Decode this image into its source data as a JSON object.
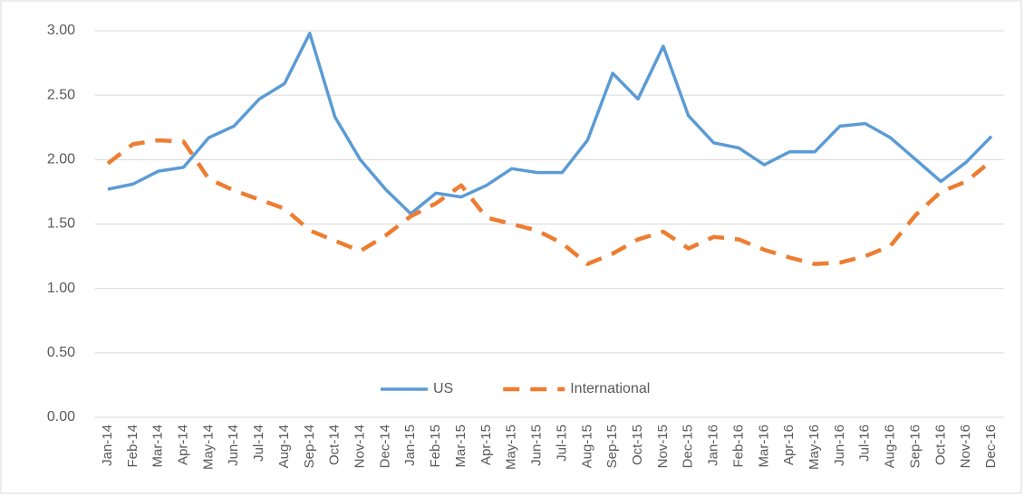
{
  "chart_data": {
    "type": "line",
    "categories": [
      "Jan-14",
      "Feb-14",
      "Mar-14",
      "Apr-14",
      "May-14",
      "Jun-14",
      "Jul-14",
      "Aug-14",
      "Sep-14",
      "Oct-14",
      "Nov-14",
      "Dec-14",
      "Jan-15",
      "Feb-15",
      "Mar-15",
      "Apr-15",
      "May-15",
      "Jun-15",
      "Jul-15",
      "Aug-15",
      "Sep-15",
      "Oct-15",
      "Nov-15",
      "Dec-15",
      "Jan-16",
      "Feb-16",
      "Mar-16",
      "Apr-16",
      "May-16",
      "Jun-16",
      "Jul-16",
      "Aug-16",
      "Sep-16",
      "Oct-16",
      "Nov-16",
      "Dec-16"
    ],
    "series": [
      {
        "name": "US",
        "color": "#5b9bd5",
        "dash": false,
        "values": [
          1.77,
          1.81,
          1.91,
          1.94,
          2.17,
          2.26,
          2.47,
          2.59,
          2.98,
          2.33,
          2.0,
          1.77,
          1.58,
          1.74,
          1.71,
          1.8,
          1.93,
          1.9,
          1.9,
          2.15,
          2.67,
          2.47,
          2.88,
          2.34,
          2.13,
          2.09,
          1.96,
          2.06,
          2.06,
          2.26,
          2.28,
          2.17,
          2.0,
          1.83,
          1.98,
          2.18
        ]
      },
      {
        "name": "International",
        "color": "#ed7d31",
        "dash": true,
        "values": [
          1.97,
          2.12,
          2.15,
          2.14,
          1.85,
          1.76,
          1.69,
          1.62,
          1.45,
          1.37,
          1.29,
          1.41,
          1.56,
          1.66,
          1.8,
          1.55,
          1.5,
          1.45,
          1.35,
          1.19,
          1.27,
          1.38,
          1.44,
          1.31,
          1.4,
          1.38,
          1.3,
          1.24,
          1.19,
          1.2,
          1.25,
          1.33,
          1.57,
          1.75,
          1.83,
          1.99
        ]
      }
    ],
    "ylim": [
      0,
      3
    ],
    "yticks": [
      {
        "value": 0,
        "label": "0.00"
      },
      {
        "value": 0.5,
        "label": "0.50"
      },
      {
        "value": 1,
        "label": "1.00"
      },
      {
        "value": 1.5,
        "label": "1.50"
      },
      {
        "value": 2,
        "label": "2.00"
      },
      {
        "value": 2.5,
        "label": "2.50"
      },
      {
        "value": 3,
        "label": "3.00"
      }
    ],
    "grid": true,
    "legend": "bottom"
  }
}
